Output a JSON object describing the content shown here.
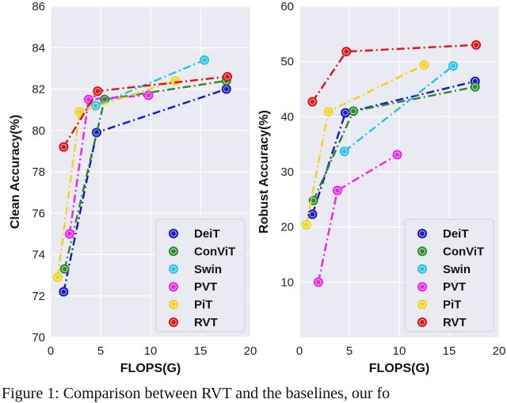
{
  "chart_data": [
    {
      "type": "line",
      "title": "",
      "xlabel": "FLOPS(G)",
      "ylabel": "Clean Accuracy(%)",
      "xlim": [
        0,
        20
      ],
      "ylim": [
        70,
        86
      ],
      "xticks": [
        "0",
        "5",
        "10",
        "15",
        "20"
      ],
      "yticks": [
        "70",
        "72",
        "74",
        "76",
        "78",
        "80",
        "82",
        "84",
        "86"
      ],
      "grid": true,
      "legend_position": "bottom-right",
      "series": [
        {
          "name": "DeiT",
          "color": "#1515cf",
          "x": [
            1.3,
            4.6,
            17.6
          ],
          "y": [
            72.2,
            79.9,
            82.0
          ]
        },
        {
          "name": "ConViT",
          "color": "#2a8a2a",
          "x": [
            1.4,
            5.4,
            17.6
          ],
          "y": [
            73.3,
            81.5,
            82.4
          ]
        },
        {
          "name": "Swin",
          "color": "#22c3e6",
          "x": [
            4.5,
            15.4
          ],
          "y": [
            81.2,
            83.4
          ]
        },
        {
          "name": "PVT",
          "color": "#ee22ee",
          "x": [
            1.9,
            3.8,
            9.8
          ],
          "y": [
            75.0,
            81.5,
            81.7
          ]
        },
        {
          "name": "PiT",
          "color": "#f2d21b",
          "x": [
            0.7,
            2.9,
            12.5
          ],
          "y": [
            72.9,
            80.9,
            82.4
          ]
        },
        {
          "name": "RVT",
          "color": "#e01212",
          "x": [
            1.3,
            4.7,
            17.7
          ],
          "y": [
            79.2,
            81.9,
            82.6
          ]
        }
      ]
    },
    {
      "type": "line",
      "title": "",
      "xlabel": "FLOPS(G)",
      "ylabel": "Robust Accuracy(%)",
      "xlim": [
        0,
        20
      ],
      "ylim": [
        0,
        60
      ],
      "xticks": [
        "0",
        "5",
        "10",
        "15",
        "20"
      ],
      "yticks": [
        "10",
        "20",
        "30",
        "40",
        "50",
        "60"
      ],
      "grid": true,
      "legend_position": "bottom-right",
      "series": [
        {
          "name": "DeiT",
          "color": "#1515cf",
          "x": [
            1.3,
            4.6,
            17.6
          ],
          "y": [
            22.3,
            40.7,
            46.4
          ]
        },
        {
          "name": "ConViT",
          "color": "#2a8a2a",
          "x": [
            1.4,
            5.4,
            17.6
          ],
          "y": [
            24.8,
            41.0,
            45.4
          ]
        },
        {
          "name": "Swin",
          "color": "#22c3e6",
          "x": [
            4.5,
            15.4
          ],
          "y": [
            33.7,
            49.2
          ]
        },
        {
          "name": "PVT",
          "color": "#ee22ee",
          "x": [
            1.9,
            3.8,
            9.8
          ],
          "y": [
            10.0,
            26.6,
            33.1
          ]
        },
        {
          "name": "PiT",
          "color": "#f2d21b",
          "x": [
            0.7,
            2.9,
            12.5
          ],
          "y": [
            20.4,
            40.9,
            49.4
          ]
        },
        {
          "name": "RVT",
          "color": "#e01212",
          "x": [
            1.3,
            4.7,
            17.7
          ],
          "y": [
            42.7,
            51.8,
            53.0
          ]
        }
      ]
    }
  ],
  "caption": "Figure 1: Comparison between RVT and the baselines, our fo"
}
